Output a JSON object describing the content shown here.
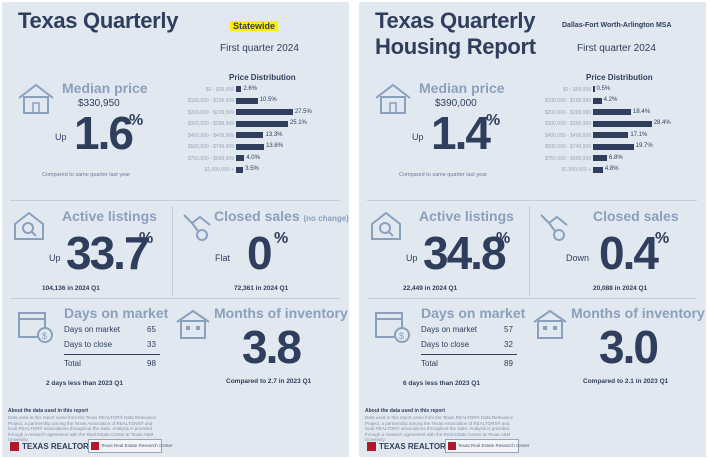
{
  "reports": [
    {
      "title_line1": "Texas Quarterly",
      "title_line2": "",
      "region": "Statewide",
      "period": "First quarter 2024",
      "median_price": {
        "label": "Median price",
        "value": "$330,950",
        "direction": "Up",
        "change": "1.6",
        "pct": "%",
        "note": "Compared to same quarter last year"
      },
      "price_distribution": {
        "title": "Price Distribution",
        "rows": [
          {
            "range": "$0 - $99,999",
            "value": 2.6,
            "label": "2.6%"
          },
          {
            "range": "$100,000 - $199,999",
            "value": 10.5,
            "label": "10.5%"
          },
          {
            "range": "$200,000 - $299,999",
            "value": 27.5,
            "label": "27.5%"
          },
          {
            "range": "$300,000 - $399,999",
            "value": 25.1,
            "label": "25.1%"
          },
          {
            "range": "$400,000 - $499,999",
            "value": 13.3,
            "label": "13.3%"
          },
          {
            "range": "$500,000 - $749,999",
            "value": 13.6,
            "label": "13.6%"
          },
          {
            "range": "$750,000 - $999,999",
            "value": 4.0,
            "label": "4.0%"
          },
          {
            "range": "$1,000,000 +",
            "value": 3.5,
            "label": "3.5%"
          }
        ]
      },
      "active_listings": {
        "label": "Active listings",
        "direction": "Up",
        "change": "33.7",
        "pct": "%",
        "note": "104,136 in 2024 Q1"
      },
      "closed_sales": {
        "label": "Closed sales",
        "qualifier": "(no change)",
        "direction": "Flat",
        "change": "0",
        "pct": "%",
        "note": "72,361 in 2024 Q1"
      },
      "days_on_market": {
        "label": "Days on market",
        "rows": [
          {
            "name": "Days on market",
            "value": "65"
          },
          {
            "name": "Days to close",
            "value": "33"
          }
        ],
        "total_label": "Total",
        "total_value": "98",
        "note": "2 days less than 2023 Q1"
      },
      "months_inventory": {
        "label": "Months of inventory",
        "value": "3.8",
        "note": "Compared to 2.7 in 2023 Q1"
      },
      "footer": {
        "about": "About the data used in this report",
        "fine_print": "Data used in this report come from the Texas REALTOR® Data Relevance Project, a partnership among the Texas Association of REALTORS® and local REALTOR® associations throughout the state. Analysis is provided through a research agreement with the Real Estate Center at Texas A&M University.",
        "logo_text": "TEXAS REALTORS",
        "partner_text": "Texas Real Estate Research Center"
      }
    },
    {
      "title_line1": "Texas Quarterly",
      "title_line2": "Housing Report",
      "region": "Dallas-Fort Worth-Arlington MSA",
      "period": "First quarter 2024",
      "median_price": {
        "label": "Median price",
        "value": "$390,000",
        "direction": "Up",
        "change": "1.4",
        "pct": "%",
        "note": "Compared to same quarter last year"
      },
      "price_distribution": {
        "title": "Price Distribution",
        "rows": [
          {
            "range": "$0 - $99,999",
            "value": 0.5,
            "label": "0.5%"
          },
          {
            "range": "$100,000 - $199,999",
            "value": 4.2,
            "label": "4.2%"
          },
          {
            "range": "$200,000 - $299,999",
            "value": 18.4,
            "label": "18.4%"
          },
          {
            "range": "$300,000 - $399,999",
            "value": 28.4,
            "label": "28.4%"
          },
          {
            "range": "$400,000 - $499,999",
            "value": 17.1,
            "label": "17.1%"
          },
          {
            "range": "$500,000 - $749,999",
            "value": 19.7,
            "label": "19.7%"
          },
          {
            "range": "$750,000 - $999,999",
            "value": 6.8,
            "label": "6.8%"
          },
          {
            "range": "$1,000,000 +",
            "value": 4.8,
            "label": "4.8%"
          }
        ]
      },
      "active_listings": {
        "label": "Active listings",
        "direction": "Up",
        "change": "34.8",
        "pct": "%",
        "note": "22,449 in 2024 Q1"
      },
      "closed_sales": {
        "label": "Closed sales",
        "qualifier": "",
        "direction": "Down",
        "change": "0.4",
        "pct": "%",
        "note": "20,088 in 2024 Q1"
      },
      "days_on_market": {
        "label": "Days on market",
        "rows": [
          {
            "name": "Days on market",
            "value": "57"
          },
          {
            "name": "Days to close",
            "value": "32"
          }
        ],
        "total_label": "Total",
        "total_value": "89",
        "note": "6 days less than 2023 Q1"
      },
      "months_inventory": {
        "label": "Months of inventory",
        "value": "3.0",
        "note": "Compared to 2.1 in 2023 Q1"
      },
      "footer": {
        "about": "About the data used in this report",
        "fine_print": "Data used in this report come from the Texas REALTOR® Data Relevance Project, a partnership among the Texas Association of REALTORS® and local REALTOR® associations throughout the state. Analysis is provided through a research agreement with the Real Estate Center at Texas A&M University.",
        "logo_text": "TEXAS REALTORS",
        "partner_text": "Texas Real Estate Research Center"
      }
    }
  ],
  "colors": {
    "navy": "#2e3e5c",
    "light_blue": "#8aa0bd",
    "highlight": "#ffee00",
    "panel_bg": "#e2e8f0",
    "brand_red": "#b0192c"
  }
}
